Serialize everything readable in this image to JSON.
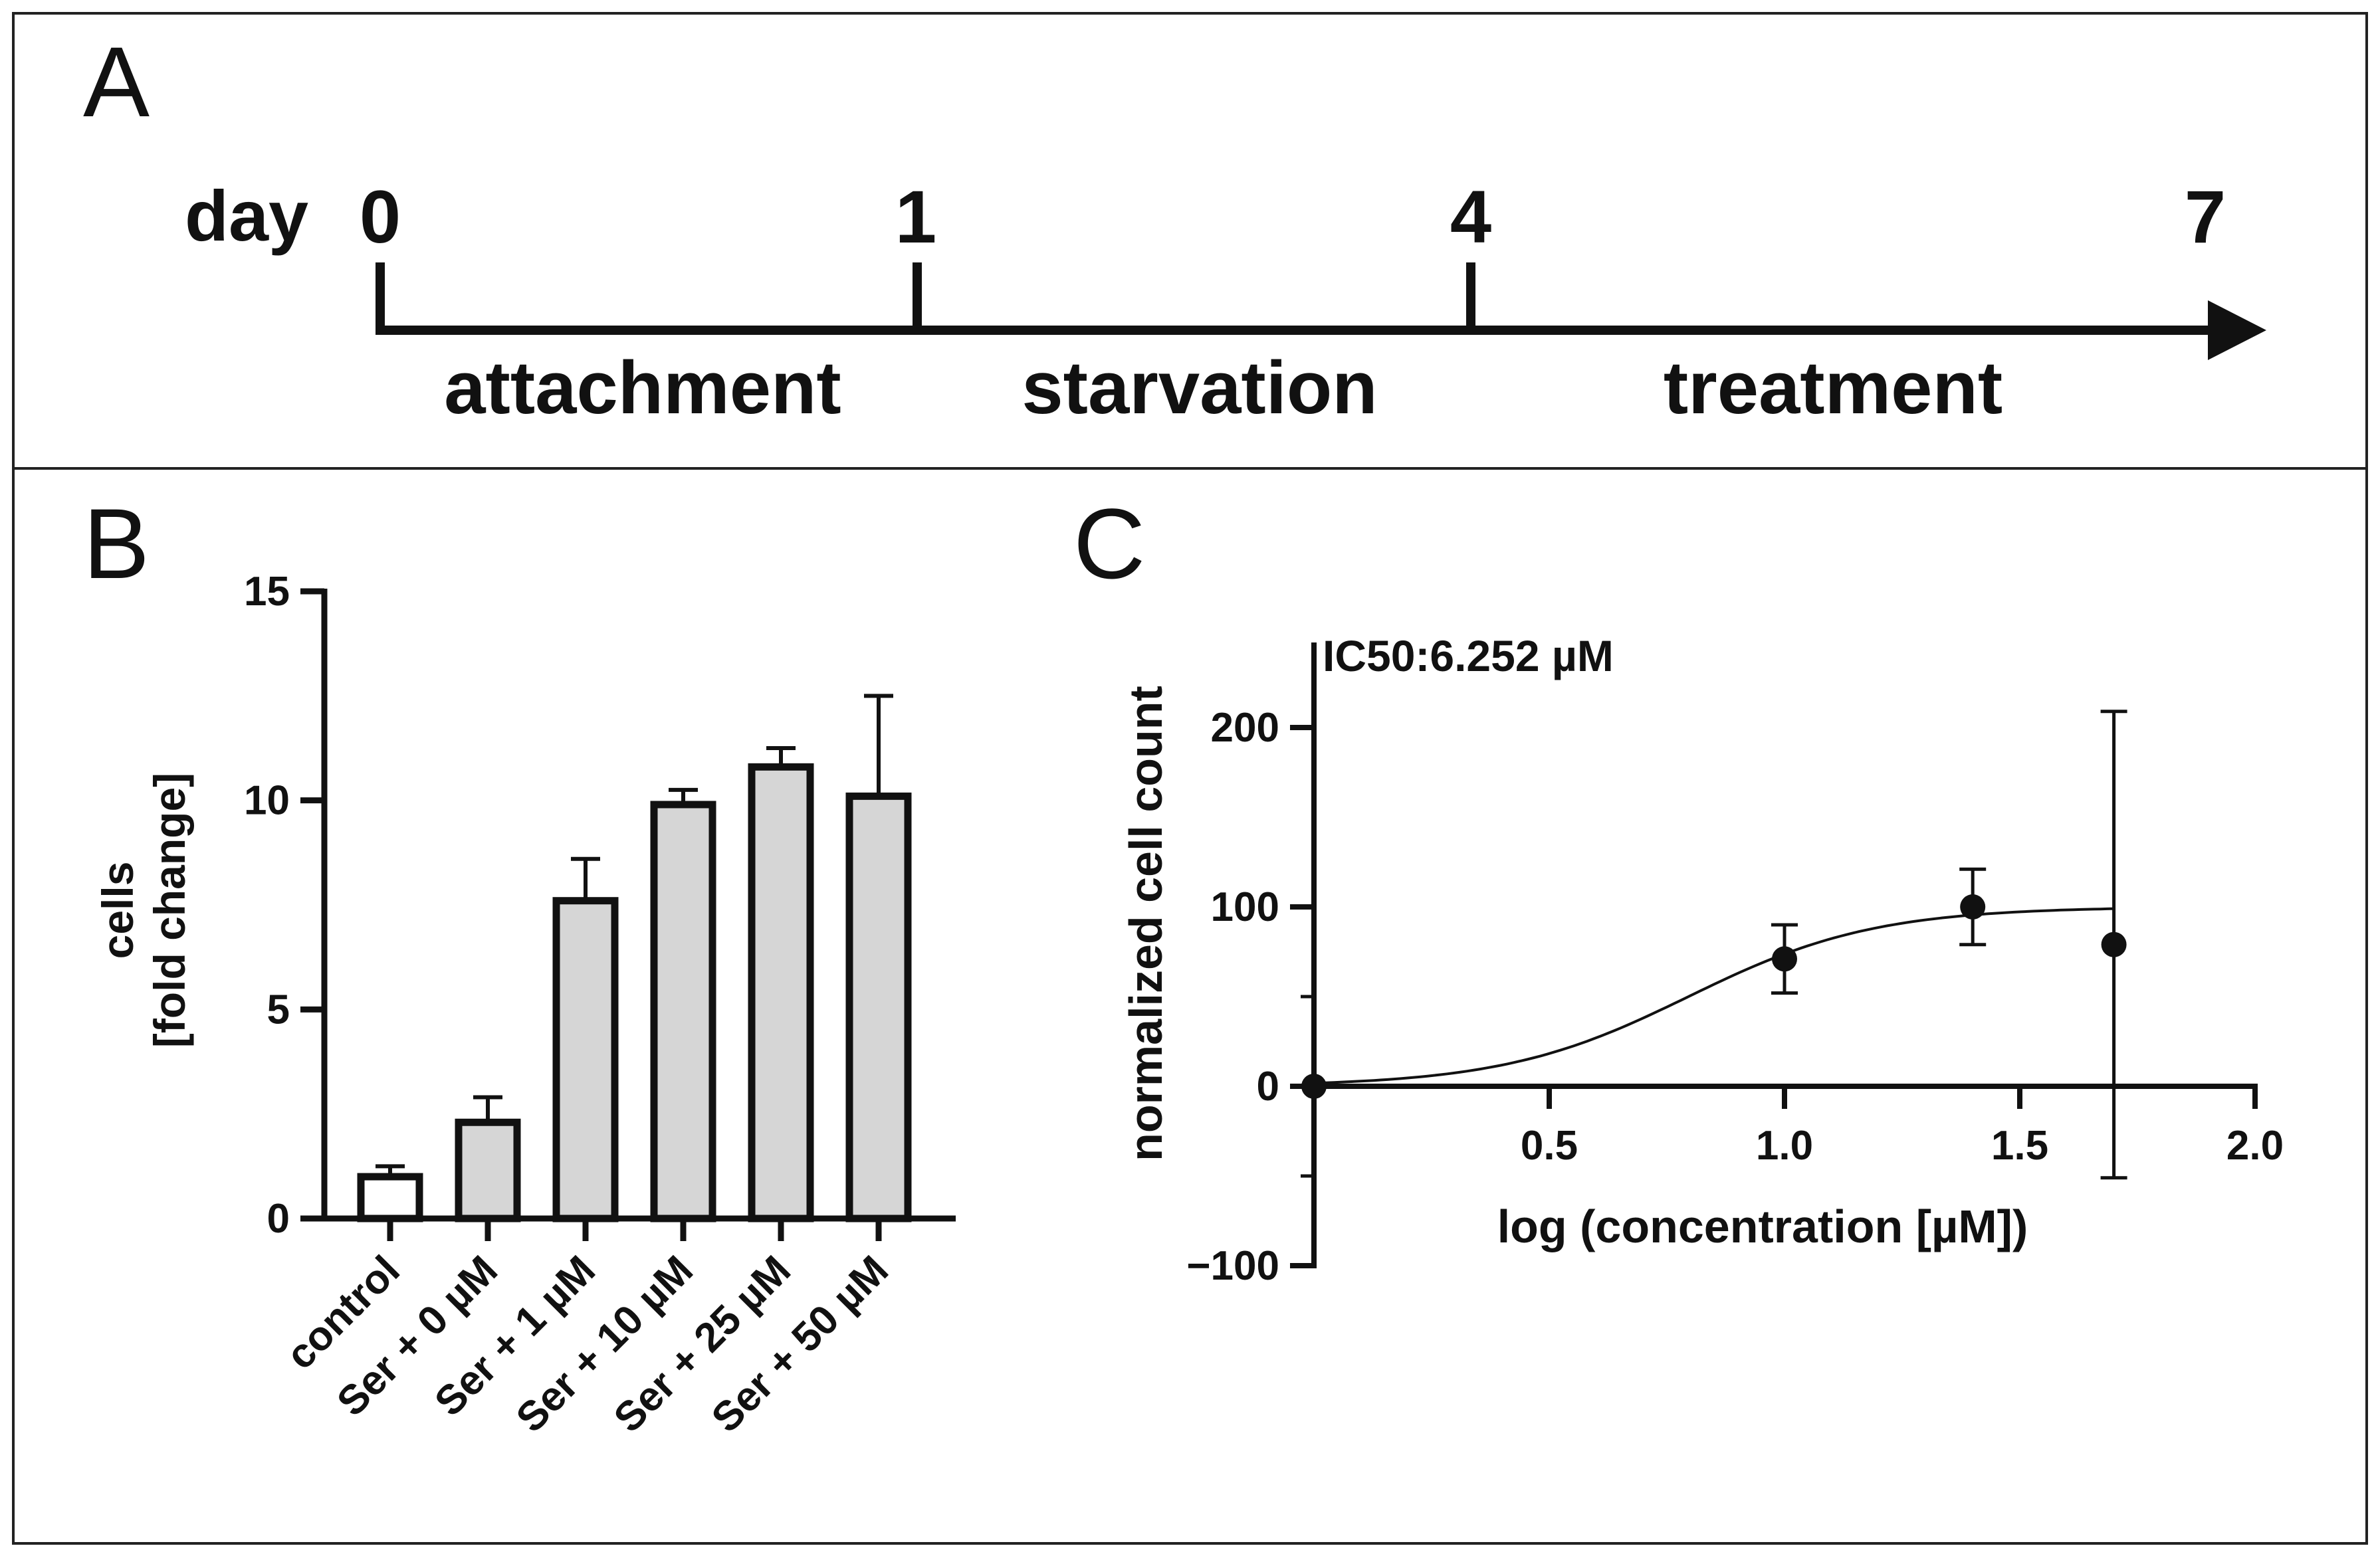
{
  "panels": {
    "a": {
      "letter": "A",
      "day_label": "day",
      "days": [
        "0",
        "1",
        "4",
        "7"
      ],
      "phases": [
        "attachment",
        "starvation",
        "treatment"
      ]
    },
    "b": {
      "letter": "B"
    },
    "c": {
      "letter": "C"
    }
  },
  "chart_data": [
    {
      "type": "bar",
      "panel": "B",
      "title": "",
      "xlabel": "",
      "ylabel_lines": [
        "cells",
        "[fold change]"
      ],
      "ylim": [
        0,
        15
      ],
      "yticks": [
        0,
        5,
        10,
        15
      ],
      "categories": [
        "control",
        "Ser + 0 µM",
        "Ser + 1 µM",
        "Ser + 10 µM",
        "Ser + 25 µM",
        "Ser + 50 µM"
      ],
      "values": [
        1.0,
        2.3,
        7.6,
        9.9,
        10.8,
        10.1
      ],
      "errors": [
        0.25,
        0.6,
        1.0,
        0.35,
        0.45,
        2.4
      ],
      "fills": [
        "#ffffff",
        "#d6d6d6",
        "#d6d6d6",
        "#d6d6d6",
        "#d6d6d6",
        "#d6d6d6"
      ]
    },
    {
      "type": "scatter",
      "panel": "C",
      "annotation": "IC50:6.252 µM",
      "xlabel": "log (concentration [µM])",
      "ylabel": "normalized cell count",
      "xlim": [
        0,
        2.0
      ],
      "ylim": [
        -100,
        250
      ],
      "xticks": [
        0.5,
        1.0,
        1.5,
        2.0
      ],
      "xtick_labels": [
        "0.5",
        "1.0",
        "1.5",
        "2.0"
      ],
      "yticks": [
        -100,
        0,
        100,
        200
      ],
      "ytick_labels": [
        "−100",
        "0",
        "100",
        "200"
      ],
      "points": [
        {
          "x": 0.0,
          "y": 0,
          "err": 0
        },
        {
          "x": 1.0,
          "y": 71,
          "err": 19
        },
        {
          "x": 1.4,
          "y": 100,
          "err": 21
        },
        {
          "x": 1.7,
          "y": 79,
          "err": 130
        }
      ],
      "fit": {
        "model": "sigmoid",
        "bottom": 0,
        "top": 100,
        "log_ic50": 0.796,
        "hill": 2.2,
        "x_range": [
          0,
          1.7
        ]
      }
    }
  ]
}
